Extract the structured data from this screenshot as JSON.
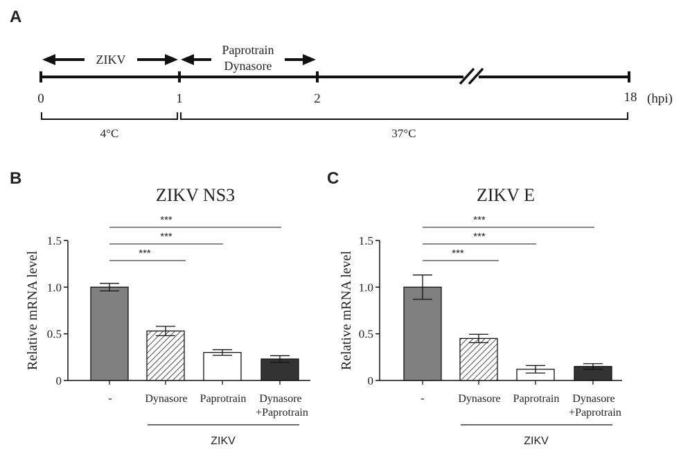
{
  "panel_labels": {
    "a": "A",
    "b": "B",
    "c": "C"
  },
  "timeline": {
    "ticks": [
      "0",
      "1",
      "2",
      "18"
    ],
    "unit": "(hpi)",
    "zikv_label": "ZIKV",
    "drug_label_1": "Paprotrain",
    "drug_label_2": "Dynasore",
    "temp_1": "4°C",
    "temp_2": "37°C"
  },
  "colors": {
    "control": "#808080",
    "dynasore": "#ffffff",
    "paprotrain": "#ffffff",
    "combo": "#333333",
    "stroke": "#222222"
  },
  "chart_data": [
    {
      "type": "bar",
      "title": "ZIKV NS3",
      "ylabel": "Relative mRNA level",
      "ylim": [
        0,
        1.5
      ],
      "yticks": [
        "0",
        "0.5",
        "1.0",
        "1.5"
      ],
      "categories": [
        "-",
        "Dynasore",
        "Paprotrain",
        "Dynasore",
        "+Paprotrain"
      ],
      "bars": [
        {
          "label": "-",
          "value": 1.0,
          "error": 0.04,
          "fill": "solid-gray"
        },
        {
          "label": "Dynasore",
          "value": 0.53,
          "error": 0.05,
          "fill": "hatched"
        },
        {
          "label": "Paprotrain",
          "value": 0.3,
          "error": 0.03,
          "fill": "white"
        },
        {
          "label": "Dynasore\n+Paprotrain",
          "value": 0.23,
          "error": 0.035,
          "fill": "dark"
        }
      ],
      "group_label": "ZIKV",
      "significance": [
        {
          "from": 0,
          "to": 1,
          "text": "***"
        },
        {
          "from": 0,
          "to": 2,
          "text": "***"
        },
        {
          "from": 0,
          "to": 3,
          "text": "***"
        }
      ]
    },
    {
      "type": "bar",
      "title": "ZIKV E",
      "ylabel": "Relative mRNA level",
      "ylim": [
        0,
        1.5
      ],
      "yticks": [
        "0",
        "0.5",
        "1.0",
        "1.5"
      ],
      "categories": [
        "-",
        "Dynasore",
        "Paprotrain",
        "Dynasore",
        "+Paprotrain"
      ],
      "bars": [
        {
          "label": "-",
          "value": 1.0,
          "error": 0.13,
          "fill": "solid-gray"
        },
        {
          "label": "Dynasore",
          "value": 0.45,
          "error": 0.045,
          "fill": "hatched"
        },
        {
          "label": "Paprotrain",
          "value": 0.12,
          "error": 0.04,
          "fill": "white"
        },
        {
          "label": "Dynasore\n+Paprotrain",
          "value": 0.15,
          "error": 0.03,
          "fill": "dark"
        }
      ],
      "group_label": "ZIKV",
      "significance": [
        {
          "from": 0,
          "to": 1,
          "text": "***"
        },
        {
          "from": 0,
          "to": 2,
          "text": "***"
        },
        {
          "from": 0,
          "to": 3,
          "text": "***"
        }
      ]
    }
  ]
}
